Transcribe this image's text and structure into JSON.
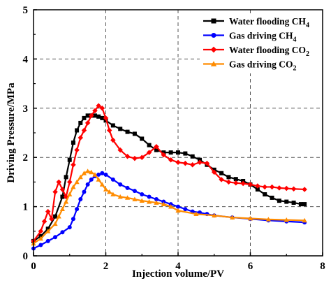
{
  "chart_data": {
    "type": "line",
    "xlabel": "Injection volume/PV",
    "ylabel": "Driving Pressure/MPa",
    "xlim": [
      0,
      8
    ],
    "ylim": [
      0,
      5
    ],
    "xticks": [
      "0",
      "2",
      "4",
      "6",
      "8"
    ],
    "yticks": [
      "0",
      "1",
      "2",
      "3",
      "4",
      "5"
    ],
    "grid": "dashed major grid",
    "legend_position": "top-right",
    "series": [
      {
        "name": "Water flooding CH",
        "name_sub": "4",
        "color": "#000000",
        "marker": "square",
        "x": [
          0,
          0.2,
          0.4,
          0.6,
          0.8,
          0.9,
          1.0,
          1.1,
          1.2,
          1.3,
          1.4,
          1.5,
          1.6,
          1.7,
          1.8,
          1.9,
          2.0,
          2.2,
          2.4,
          2.6,
          2.8,
          3.0,
          3.2,
          3.4,
          3.6,
          3.8,
          4.0,
          4.2,
          4.4,
          4.6,
          4.8,
          5.0,
          5.2,
          5.4,
          5.6,
          5.8,
          6.0,
          6.2,
          6.4,
          6.6,
          6.8,
          7.0,
          7.2,
          7.4,
          7.5
        ],
        "y": [
          0.3,
          0.4,
          0.55,
          0.8,
          1.2,
          1.6,
          1.95,
          2.3,
          2.55,
          2.7,
          2.8,
          2.85,
          2.85,
          2.85,
          2.83,
          2.8,
          2.75,
          2.65,
          2.58,
          2.52,
          2.48,
          2.38,
          2.25,
          2.15,
          2.1,
          2.1,
          2.1,
          2.08,
          2.02,
          1.95,
          1.85,
          1.75,
          1.68,
          1.6,
          1.56,
          1.52,
          1.45,
          1.35,
          1.25,
          1.18,
          1.12,
          1.1,
          1.08,
          1.05,
          1.05
        ]
      },
      {
        "name": "Gas driving CH",
        "name_sub": "4",
        "color": "#0000ff",
        "marker": "circle",
        "x": [
          0,
          0.2,
          0.4,
          0.6,
          0.8,
          1.0,
          1.1,
          1.2,
          1.3,
          1.4,
          1.5,
          1.6,
          1.7,
          1.8,
          1.9,
          2.0,
          2.2,
          2.4,
          2.6,
          2.8,
          3.0,
          3.2,
          3.4,
          3.6,
          3.8,
          4.0,
          4.2,
          4.4,
          4.6,
          4.8,
          5.0,
          5.5,
          6.0,
          6.5,
          7.0,
          7.5
        ],
        "y": [
          0.15,
          0.22,
          0.3,
          0.38,
          0.48,
          0.58,
          0.75,
          0.95,
          1.15,
          1.3,
          1.45,
          1.55,
          1.62,
          1.65,
          1.68,
          1.65,
          1.55,
          1.45,
          1.38,
          1.32,
          1.25,
          1.2,
          1.15,
          1.1,
          1.05,
          1.0,
          0.95,
          0.9,
          0.88,
          0.85,
          0.82,
          0.78,
          0.75,
          0.72,
          0.7,
          0.68
        ]
      },
      {
        "name": "Water flooding CO",
        "name_sub": "2",
        "color": "#ff0000",
        "marker": "diamond",
        "x": [
          0,
          0.2,
          0.3,
          0.4,
          0.5,
          0.6,
          0.7,
          0.8,
          0.9,
          1.0,
          1.1,
          1.2,
          1.3,
          1.4,
          1.5,
          1.6,
          1.7,
          1.8,
          1.9,
          2.0,
          2.1,
          2.2,
          2.4,
          2.6,
          2.8,
          3.0,
          3.2,
          3.4,
          3.6,
          3.8,
          4.0,
          4.2,
          4.4,
          4.6,
          4.8,
          5.0,
          5.2,
          5.4,
          5.6,
          5.8,
          6.0,
          6.2,
          6.4,
          6.6,
          6.8,
          7.0,
          7.2,
          7.5
        ],
        "y": [
          0.3,
          0.5,
          0.7,
          0.9,
          0.75,
          1.3,
          1.5,
          1.35,
          1.2,
          1.5,
          1.85,
          2.15,
          2.4,
          2.55,
          2.7,
          2.85,
          2.95,
          3.05,
          3.0,
          2.8,
          2.55,
          2.35,
          2.15,
          2.02,
          1.98,
          2.0,
          2.1,
          2.22,
          2.05,
          1.95,
          1.9,
          1.88,
          1.85,
          1.9,
          1.88,
          1.7,
          1.55,
          1.5,
          1.48,
          1.47,
          1.45,
          1.42,
          1.4,
          1.4,
          1.38,
          1.37,
          1.36,
          1.35
        ]
      },
      {
        "name": "Gas driving CO",
        "name_sub": "2",
        "color": "#ff8c00",
        "marker": "triangle",
        "x": [
          0,
          0.2,
          0.4,
          0.6,
          0.7,
          0.8,
          0.9,
          1.0,
          1.1,
          1.2,
          1.3,
          1.4,
          1.5,
          1.6,
          1.7,
          1.8,
          1.9,
          2.0,
          2.1,
          2.2,
          2.4,
          2.6,
          2.8,
          3.0,
          3.2,
          3.4,
          3.6,
          3.8,
          4.0,
          4.5,
          5.0,
          5.5,
          6.0,
          6.5,
          7.0,
          7.5
        ],
        "y": [
          0.25,
          0.35,
          0.5,
          0.65,
          0.8,
          0.95,
          1.1,
          1.25,
          1.4,
          1.5,
          1.6,
          1.68,
          1.72,
          1.7,
          1.65,
          1.55,
          1.45,
          1.35,
          1.3,
          1.25,
          1.2,
          1.18,
          1.15,
          1.12,
          1.1,
          1.08,
          1.05,
          1.0,
          0.92,
          0.85,
          0.82,
          0.78,
          0.76,
          0.74,
          0.73,
          0.72
        ]
      }
    ]
  }
}
